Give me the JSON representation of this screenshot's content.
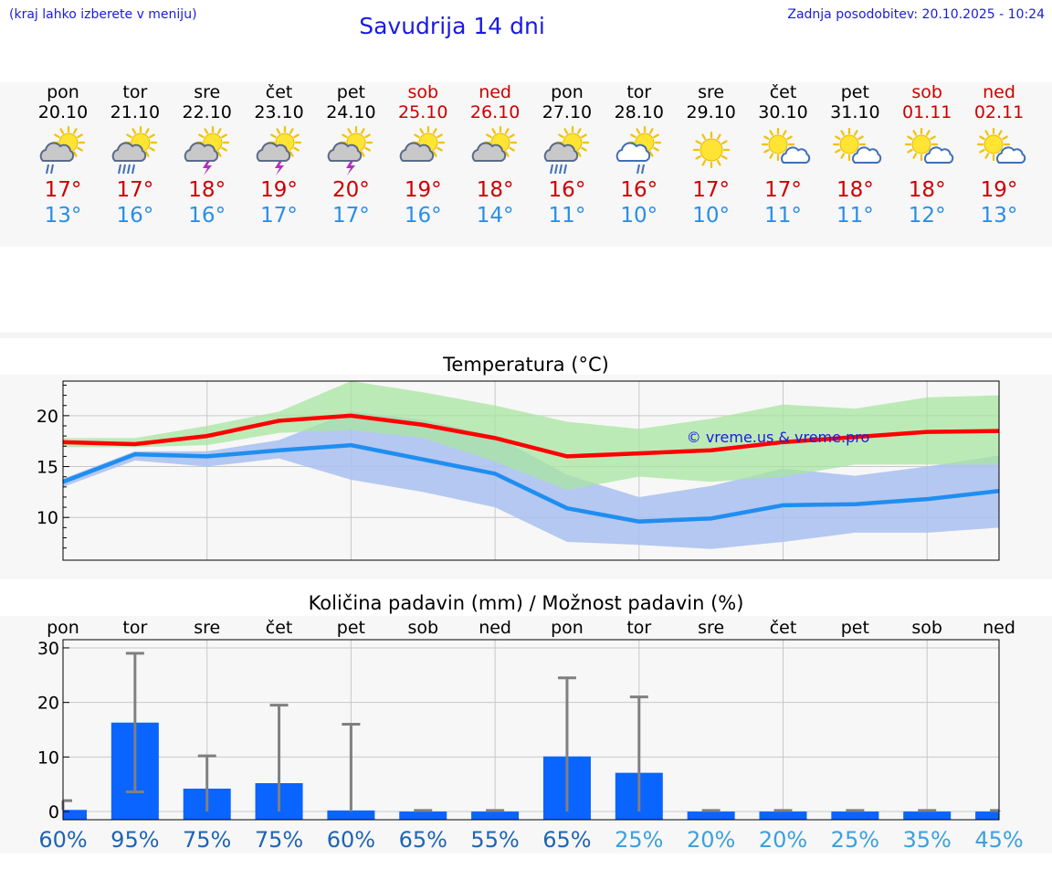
{
  "header": {
    "note": "(kraj lahko izberete v meniju)",
    "title": "Savudrija 14 dni",
    "update": "Zadnja posodobitev: 20.10.2025 - 10:24"
  },
  "colors": {
    "max_temp": "#cc0000",
    "min_temp": "#2a8ee8",
    "max_band": "#a8e6a0",
    "min_band": "#a9c0f0",
    "max_line": "#ff0000",
    "min_line": "#1f8ef0",
    "bar": "#0a64ff",
    "whisker": "#808080",
    "watermark": "#1a1ae6"
  },
  "days": [
    {
      "name": "pon",
      "date": "20.10",
      "weekend": false,
      "icon": "sun-cloud-rain-icon",
      "tmax": "17°",
      "tmin": "13°"
    },
    {
      "name": "tor",
      "date": "21.10",
      "weekend": false,
      "icon": "sun-cloud-heavy-rain-icon",
      "tmax": "17°",
      "tmin": "16°"
    },
    {
      "name": "sre",
      "date": "22.10",
      "weekend": false,
      "icon": "sun-cloud-thunder-icon",
      "tmax": "18°",
      "tmin": "16°"
    },
    {
      "name": "čet",
      "date": "23.10",
      "weekend": false,
      "icon": "sun-cloud-thunder-icon",
      "tmax": "19°",
      "tmin": "17°"
    },
    {
      "name": "pet",
      "date": "24.10",
      "weekend": false,
      "icon": "sun-cloud-thunder-icon",
      "tmax": "20°",
      "tmin": "17°"
    },
    {
      "name": "sob",
      "date": "25.10",
      "weekend": true,
      "icon": "sun-cloud-icon",
      "tmax": "19°",
      "tmin": "16°"
    },
    {
      "name": "ned",
      "date": "26.10",
      "weekend": true,
      "icon": "sun-cloud-icon",
      "tmax": "18°",
      "tmin": "14°"
    },
    {
      "name": "pon",
      "date": "27.10",
      "weekend": false,
      "icon": "sun-cloud-heavy-rain-icon",
      "tmax": "16°",
      "tmin": "11°"
    },
    {
      "name": "tor",
      "date": "28.10",
      "weekend": false,
      "icon": "sun-cloud-light-rain-icon",
      "tmax": "16°",
      "tmin": "10°"
    },
    {
      "name": "sre",
      "date": "29.10",
      "weekend": false,
      "icon": "sun-icon",
      "tmax": "17°",
      "tmin": "10°"
    },
    {
      "name": "čet",
      "date": "30.10",
      "weekend": false,
      "icon": "sun-small-cloud-icon",
      "tmax": "17°",
      "tmin": "11°"
    },
    {
      "name": "pet",
      "date": "31.10",
      "weekend": false,
      "icon": "sun-small-cloud-icon",
      "tmax": "18°",
      "tmin": "11°"
    },
    {
      "name": "sob",
      "date": "01.11",
      "weekend": true,
      "icon": "sun-small-cloud-icon",
      "tmax": "18°",
      "tmin": "12°"
    },
    {
      "name": "ned",
      "date": "02.11",
      "weekend": true,
      "icon": "sun-small-cloud-icon",
      "tmax": "19°",
      "tmin": "13°"
    }
  ],
  "chart_data": [
    {
      "type": "line",
      "title": "Temperatura (°C)",
      "watermark": "© vreme.us & vreme.pro",
      "x": [
        "20.10",
        "21.10",
        "22.10",
        "23.10",
        "24.10",
        "25.10",
        "26.10",
        "27.10",
        "28.10",
        "29.10",
        "30.10",
        "31.10",
        "01.11",
        "02.11"
      ],
      "ylim": [
        5.8,
        23.4
      ],
      "yticks": [
        10,
        15,
        20
      ],
      "grid": true,
      "series": [
        {
          "values": [
            17.4,
            17.2,
            18.0,
            19.5,
            20.0,
            19.1,
            17.8,
            16.0,
            16.3,
            16.6,
            17.4,
            17.9,
            18.4,
            18.5
          ],
          "band_low": [
            16.9,
            16.9,
            17.1,
            18.3,
            18.6,
            17.8,
            15.5,
            12.7,
            14.0,
            13.5,
            14.0,
            15.2,
            15.2,
            15.2
          ],
          "band_high": [
            17.8,
            17.8,
            19.0,
            20.4,
            23.4,
            22.3,
            21.0,
            19.4,
            18.7,
            19.7,
            21.1,
            20.7,
            21.8,
            22.0
          ]
        },
        {
          "values": [
            13.5,
            16.2,
            16.0,
            16.6,
            17.1,
            15.7,
            14.3,
            10.9,
            9.6,
            9.9,
            11.2,
            11.3,
            11.8,
            12.6
          ],
          "band_low": [
            13.0,
            15.6,
            15.0,
            15.8,
            13.7,
            12.5,
            11.0,
            7.6,
            7.3,
            6.9,
            7.6,
            8.5,
            8.5,
            9.0
          ],
          "band_high": [
            13.8,
            16.5,
            16.5,
            17.6,
            20.4,
            19.6,
            18.0,
            14.2,
            12.0,
            13.1,
            14.8,
            14.1,
            15.0,
            16.1
          ]
        }
      ]
    },
    {
      "type": "bar",
      "title": "Količina padavin (mm) / Možnost padavin (%)",
      "categories": [
        "pon",
        "tor",
        "sre",
        "čet",
        "pet",
        "sob",
        "ned",
        "pon",
        "tor",
        "sre",
        "čet",
        "pet",
        "sob",
        "ned"
      ],
      "values": [
        0.3,
        16.3,
        4.2,
        5.2,
        0.2,
        0.0,
        0.0,
        10.1,
        7.1,
        0.0,
        0.0,
        0.0,
        0.0,
        0.0
      ],
      "error_low": [
        0.3,
        3.6,
        0.0,
        0.0,
        0.0,
        0.0,
        0.0,
        0.0,
        0.0,
        0.0,
        0.0,
        0.0,
        0.0,
        0.0
      ],
      "error_high": [
        2.0,
        29.0,
        10.2,
        19.5,
        16.0,
        0.2,
        0.2,
        24.5,
        21.0,
        0.2,
        0.2,
        0.2,
        0.2,
        0.2
      ],
      "ylim": [
        -1.5,
        31.5
      ],
      "yticks": [
        0,
        10,
        20,
        30
      ],
      "grid": true,
      "probability": [
        "60%",
        "95%",
        "75%",
        "75%",
        "60%",
        "65%",
        "55%",
        "65%",
        "25%",
        "20%",
        "20%",
        "25%",
        "35%",
        "45%"
      ],
      "probability_colors": [
        "#1f64b4",
        "#1f64b4",
        "#1f64b4",
        "#1f64b4",
        "#1f64b4",
        "#1f64b4",
        "#1f64b4",
        "#1f64b4",
        "#3ca0dc",
        "#3ca0dc",
        "#3ca0dc",
        "#3ca0dc",
        "#3ca0dc",
        "#3ca0dc"
      ]
    }
  ]
}
